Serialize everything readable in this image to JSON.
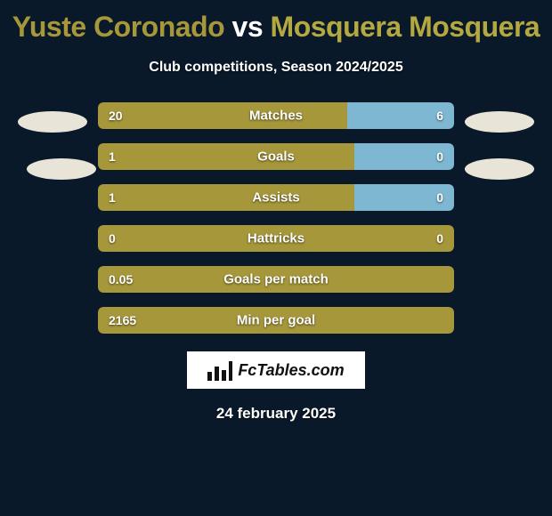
{
  "header": {
    "title_left": "Yuste Coronado",
    "vs": " vs ",
    "title_right": "Mosquera Mosquera",
    "subtitle": "Club competitions, Season 2024/2025"
  },
  "colors": {
    "left_name": "#a6973a",
    "right_name": "#b4a841",
    "bar_left": "#a6973a",
    "bar_right": "#7db7d1",
    "bar_full": "#a6973a",
    "background": "#0a1929"
  },
  "stats": [
    {
      "label": "Matches",
      "left_val": "20",
      "right_val": "6",
      "left_pct": 70,
      "right_pct": 30,
      "split": true
    },
    {
      "label": "Goals",
      "left_val": "1",
      "right_val": "0",
      "left_pct": 72,
      "right_pct": 28,
      "split": true
    },
    {
      "label": "Assists",
      "left_val": "1",
      "right_val": "0",
      "left_pct": 72,
      "right_pct": 28,
      "split": true
    },
    {
      "label": "Hattricks",
      "left_val": "0",
      "right_val": "0",
      "left_pct": 100,
      "right_pct": 0,
      "split": false
    },
    {
      "label": "Goals per match",
      "left_val": "0.05",
      "right_val": "",
      "left_pct": 100,
      "right_pct": 0,
      "split": false
    },
    {
      "label": "Min per goal",
      "left_val": "2165",
      "right_val": "",
      "left_pct": 100,
      "right_pct": 0,
      "split": false
    }
  ],
  "footer": {
    "logo_text": "FcTables.com",
    "date": "24 february 2025"
  }
}
